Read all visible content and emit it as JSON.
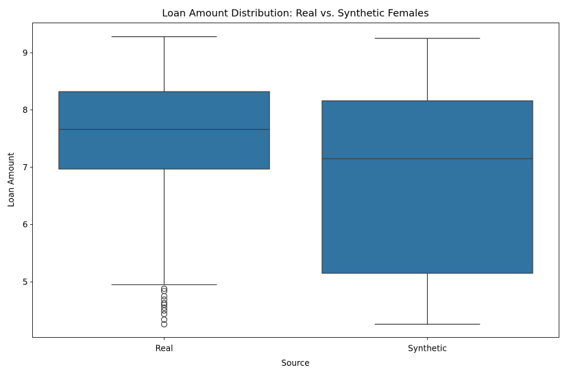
{
  "chart_data": {
    "type": "boxplot",
    "title": "Loan Amount Distribution: Real vs. Synthetic Females",
    "xlabel": "Source",
    "ylabel": "Loan Amount",
    "ylim": [
      4.03,
      9.52
    ],
    "yticks": [
      5,
      6,
      7,
      8,
      9
    ],
    "grid": false,
    "box_color": "#3274a1",
    "line_color": "#3d3d3d",
    "categories": [
      "Real",
      "Synthetic"
    ],
    "boxes": [
      {
        "category": "Real",
        "whisker_low": 4.95,
        "q1": 6.97,
        "median": 7.66,
        "q3": 8.32,
        "whisker_high": 9.28,
        "outliers": [
          4.88,
          4.84,
          4.75,
          4.69,
          4.63,
          4.6,
          4.55,
          4.5,
          4.44,
          4.34,
          4.26
        ]
      },
      {
        "category": "Synthetic",
        "whisker_low": 4.26,
        "q1": 5.15,
        "median": 7.15,
        "q3": 8.16,
        "whisker_high": 9.25,
        "outliers": []
      }
    ]
  }
}
